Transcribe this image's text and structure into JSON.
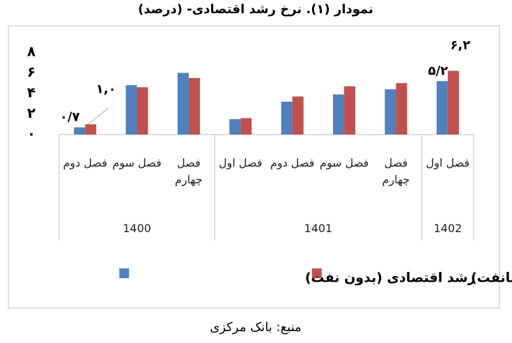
{
  "chart_data": {
    "type": "bar",
    "title": "نمودار (۱). نرخ رشد اقتصادی- (درصد)",
    "source": "منبع: بانک مرکزی",
    "groups": [
      {
        "label": "1400",
        "categories": [
          "فصل دوم",
          "فصل سوم",
          "فصل چهارم"
        ]
      },
      {
        "label": "1401",
        "categories": [
          "فصل اول",
          "فصل دوم",
          "فصل سوم",
          "فصل چهارم"
        ]
      },
      {
        "label": "1402",
        "categories": [
          "فصل اول"
        ]
      }
    ],
    "series": [
      {
        "name": "رشد اقتصادی (بدون نفت)",
        "color": "#4f81bd",
        "values": [
          0.7,
          4.8,
          6.0,
          1.5,
          3.2,
          3.9,
          4.4,
          5.2
        ],
        "value_labels": [
          "۰/۷",
          null,
          null,
          null,
          null,
          null,
          null,
          "۵/۲"
        ]
      },
      {
        "name": "رشد اقتصادی (بانفت)",
        "color": "#c0504d",
        "values": [
          1.0,
          4.6,
          5.5,
          1.6,
          3.7,
          4.7,
          5.0,
          6.2
        ],
        "value_labels": [
          "۱,۰",
          null,
          null,
          null,
          null,
          null,
          null,
          "۶,۲"
        ]
      }
    ],
    "ylim": [
      0,
      8
    ],
    "yticks": [
      {
        "value": 0,
        "label": "۰"
      },
      {
        "value": 2,
        "label": "۲"
      },
      {
        "value": 4,
        "label": "۴"
      },
      {
        "value": 6,
        "label": "۶"
      },
      {
        "value": 8,
        "label": "۸"
      }
    ],
    "grid": false,
    "legend": "bottom"
  }
}
